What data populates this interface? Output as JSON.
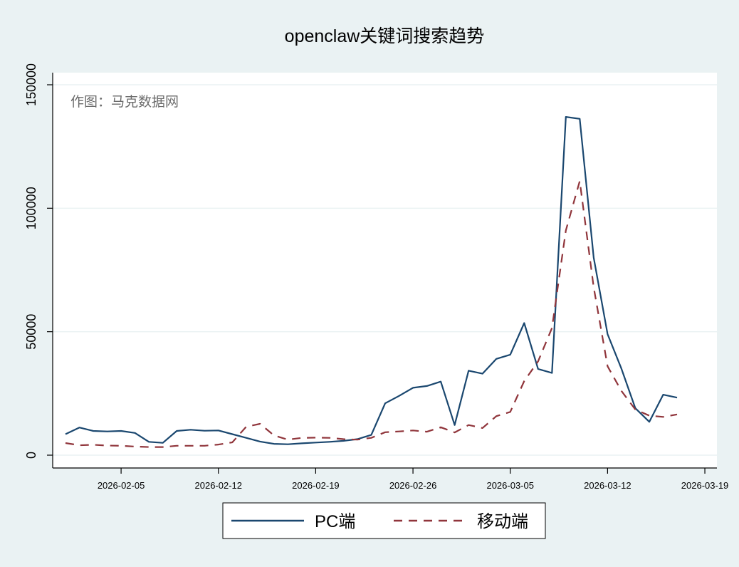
{
  "chart_data": {
    "type": "line",
    "title": "openclaw关键词搜索趋势",
    "note": "作图：马克数据网",
    "xlabel": "",
    "ylabel": "",
    "ylim": [
      0,
      150000
    ],
    "yticks": [
      0,
      50000,
      100000,
      150000
    ],
    "xticks": [
      "2026-02-05",
      "2026-02-12",
      "2026-02-19",
      "2026-02-26",
      "2026-03-05",
      "2026-03-12",
      "2026-03-19"
    ],
    "xlim": [
      "2026-01-31",
      "2026-03-20"
    ],
    "grid": true,
    "legend_position": "bottom",
    "colors": {
      "background": "#eaf2f3",
      "plot": "#ffffff",
      "pc": "#1a476f",
      "mobile": "#90353b",
      "grid": "#eaf2f3"
    },
    "x": [
      "2026-02-01",
      "2026-02-02",
      "2026-02-03",
      "2026-02-04",
      "2026-02-05",
      "2026-02-06",
      "2026-02-07",
      "2026-02-08",
      "2026-02-09",
      "2026-02-10",
      "2026-02-11",
      "2026-02-12",
      "2026-02-13",
      "2026-02-14",
      "2026-02-15",
      "2026-02-16",
      "2026-02-17",
      "2026-02-18",
      "2026-02-19",
      "2026-02-20",
      "2026-02-21",
      "2026-02-22",
      "2026-02-23",
      "2026-02-24",
      "2026-02-25",
      "2026-02-26",
      "2026-02-27",
      "2026-02-28",
      "2026-03-01",
      "2026-03-02",
      "2026-03-03",
      "2026-03-04",
      "2026-03-05",
      "2026-03-06",
      "2026-03-07",
      "2026-03-08",
      "2026-03-09",
      "2026-03-10",
      "2026-03-11",
      "2026-03-12",
      "2026-03-13",
      "2026-03-14",
      "2026-03-15",
      "2026-03-16",
      "2026-03-17"
    ],
    "series": [
      {
        "name": "PC端",
        "style": "solid",
        "values": [
          8500,
          11200,
          9800,
          9600,
          9800,
          9000,
          5400,
          5000,
          9800,
          10300,
          9900,
          10000,
          8500,
          7000,
          5500,
          4600,
          4400,
          4800,
          5100,
          5400,
          5800,
          6500,
          8200,
          21000,
          24000,
          27300,
          28000,
          29800,
          12200,
          34200,
          33000,
          39000,
          40700,
          53500,
          34900,
          33300,
          137000,
          136200,
          80000,
          49000,
          35000,
          19000,
          13500,
          24500,
          23300
        ]
      },
      {
        "name": "移动端",
        "style": "dashed",
        "values": [
          4900,
          4000,
          4200,
          3900,
          3800,
          3500,
          3300,
          3300,
          3800,
          3800,
          3800,
          4300,
          5200,
          11500,
          12700,
          8000,
          6300,
          7000,
          7100,
          7000,
          6500,
          6300,
          7000,
          9300,
          9600,
          10000,
          9500,
          11300,
          9200,
          12200,
          11000,
          15800,
          17500,
          30000,
          38000,
          51500,
          91000,
          111000,
          68000,
          36000,
          26000,
          18500,
          16000,
          15500,
          16500
        ]
      }
    ]
  }
}
